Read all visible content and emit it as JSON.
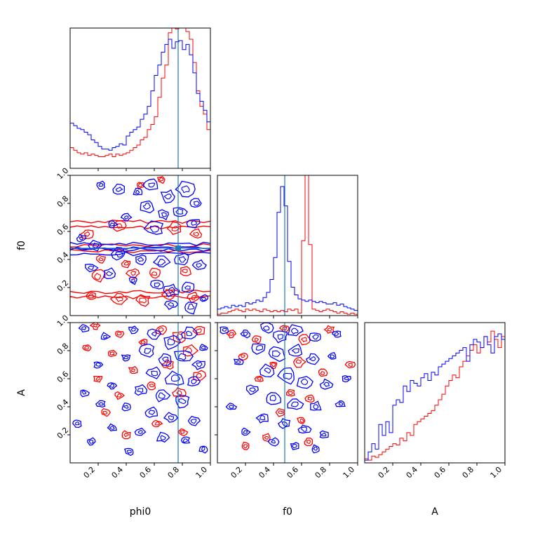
{
  "chart_data": {
    "type": "corner",
    "parameters": [
      "phi0",
      "f0",
      "A"
    ],
    "axis_ranges": {
      "phi0": [
        0,
        1
      ],
      "f0": [
        0,
        1
      ],
      "A": [
        0,
        1
      ]
    },
    "ticks": [
      0.2,
      0.4,
      0.6,
      0.8,
      1.0
    ],
    "tick_labels": [
      "0.2",
      "0.4",
      "0.6",
      "0.8",
      "1.0"
    ],
    "truth": {
      "phi0": 0.77,
      "f0": 0.48
    },
    "colors": {
      "series_a": "#0000ff",
      "series_b": "#ff0000",
      "truth": "#1f77b4",
      "axes": "#000000"
    },
    "grid": false,
    "legend": "none",
    "histograms": {
      "phi0": {
        "bins": 40,
        "blue": [
          0.35,
          0.33,
          0.31,
          0.3,
          0.28,
          0.26,
          0.22,
          0.2,
          0.17,
          0.15,
          0.15,
          0.14,
          0.16,
          0.17,
          0.19,
          0.18,
          0.25,
          0.28,
          0.3,
          0.32,
          0.38,
          0.42,
          0.48,
          0.6,
          0.72,
          0.8,
          0.9,
          0.96,
          1.0,
          0.93,
          0.98,
          0.99,
          0.92,
          0.96,
          0.88,
          0.74,
          0.58,
          0.52,
          0.45,
          0.36
        ],
        "red": [
          0.16,
          0.14,
          0.12,
          0.11,
          0.12,
          0.1,
          0.11,
          0.1,
          0.09,
          0.09,
          0.1,
          0.11,
          0.09,
          0.11,
          0.1,
          0.11,
          0.12,
          0.14,
          0.16,
          0.18,
          0.22,
          0.24,
          0.3,
          0.34,
          0.4,
          0.55,
          0.7,
          0.8,
          1.05,
          1.1,
          1.08,
          1.12,
          1.1,
          1.06,
          1.0,
          0.82,
          0.6,
          0.48,
          0.42,
          0.3
        ]
      },
      "f0": {
        "bins": 40,
        "blue": [
          0.05,
          0.06,
          0.07,
          0.06,
          0.08,
          0.07,
          0.08,
          0.07,
          0.1,
          0.09,
          0.1,
          0.12,
          0.11,
          0.14,
          0.18,
          0.28,
          0.45,
          0.8,
          1.0,
          0.85,
          0.42,
          0.22,
          0.16,
          0.13,
          0.12,
          0.11,
          0.12,
          0.11,
          0.1,
          0.11,
          0.1,
          0.09,
          0.09,
          0.1,
          0.08,
          0.09,
          0.07,
          0.06,
          0.05,
          0.04
        ],
        "red": [
          0.01,
          0.02,
          0.02,
          0.03,
          0.04,
          0.05,
          0.04,
          0.03,
          0.05,
          0.04,
          0.05,
          0.04,
          0.03,
          0.05,
          0.04,
          0.03,
          0.04,
          0.03,
          0.04,
          0.03,
          0.05,
          0.04,
          0.05,
          0.02,
          0.58,
          1.4,
          0.55,
          0.05,
          0.04,
          0.03,
          0.04,
          0.05,
          0.04,
          0.03,
          0.02,
          0.03,
          0.02,
          0.01,
          0.02,
          0.01
        ]
      },
      "A": {
        "bins": 40,
        "blue": [
          0.02,
          0.08,
          0.14,
          0.1,
          0.28,
          0.2,
          0.3,
          0.22,
          0.42,
          0.46,
          0.44,
          0.56,
          0.52,
          0.6,
          0.58,
          0.56,
          0.62,
          0.65,
          0.6,
          0.66,
          0.64,
          0.7,
          0.72,
          0.74,
          0.76,
          0.78,
          0.8,
          0.82,
          0.84,
          0.74,
          0.86,
          0.9,
          0.88,
          0.84,
          0.92,
          0.86,
          0.8,
          0.92,
          0.94,
          0.9
        ],
        "red": [
          0.03,
          0.02,
          0.05,
          0.04,
          0.06,
          0.08,
          0.1,
          0.12,
          0.14,
          0.13,
          0.18,
          0.16,
          0.22,
          0.2,
          0.28,
          0.3,
          0.32,
          0.34,
          0.36,
          0.38,
          0.42,
          0.46,
          0.5,
          0.56,
          0.6,
          0.64,
          0.62,
          0.7,
          0.74,
          0.78,
          0.82,
          0.86,
          0.8,
          0.84,
          0.92,
          0.88,
          0.96,
          0.9,
          0.84,
          0.92
        ]
      }
    },
    "contours": [
      {
        "x": "phi0",
        "y": "f0",
        "blue_rings": [
          [
            0.22,
            0.93,
            0.03
          ],
          [
            0.35,
            0.9,
            0.04
          ],
          [
            0.48,
            0.88,
            0.03
          ],
          [
            0.58,
            0.93,
            0.05
          ],
          [
            0.7,
            0.85,
            0.05
          ],
          [
            0.82,
            0.9,
            0.06
          ],
          [
            0.9,
            0.8,
            0.04
          ],
          [
            0.55,
            0.78,
            0.05
          ],
          [
            0.67,
            0.72,
            0.04
          ],
          [
            0.78,
            0.74,
            0.05
          ],
          [
            0.4,
            0.7,
            0.03
          ],
          [
            0.3,
            0.65,
            0.03
          ],
          [
            0.88,
            0.66,
            0.04
          ],
          [
            0.6,
            0.62,
            0.06
          ],
          [
            0.08,
            0.55,
            0.03
          ],
          [
            0.18,
            0.5,
            0.04
          ],
          [
            0.35,
            0.44,
            0.05
          ],
          [
            0.5,
            0.4,
            0.04
          ],
          [
            0.65,
            0.38,
            0.05
          ],
          [
            0.8,
            0.4,
            0.05
          ],
          [
            0.92,
            0.36,
            0.04
          ],
          [
            0.15,
            0.34,
            0.04
          ],
          [
            0.28,
            0.3,
            0.04
          ],
          [
            0.45,
            0.25,
            0.03
          ],
          [
            0.62,
            0.22,
            0.04
          ],
          [
            0.72,
            0.18,
            0.05
          ],
          [
            0.84,
            0.2,
            0.04
          ],
          [
            0.72,
            0.08,
            0.04
          ],
          [
            0.86,
            0.06,
            0.05
          ],
          [
            0.95,
            0.12,
            0.03
          ]
        ],
        "red_rings": [
          [
            0.65,
            0.97,
            0.03
          ],
          [
            0.5,
            0.93,
            0.03
          ],
          [
            0.35,
            0.64,
            0.04
          ],
          [
            0.12,
            0.58,
            0.04
          ],
          [
            0.75,
            0.62,
            0.05
          ],
          [
            0.9,
            0.58,
            0.04
          ],
          [
            0.22,
            0.4,
            0.03
          ],
          [
            0.4,
            0.37,
            0.03
          ],
          [
            0.6,
            0.3,
            0.04
          ],
          [
            0.82,
            0.32,
            0.04
          ],
          [
            0.2,
            0.28,
            0.05
          ],
          [
            0.45,
            0.3,
            0.04
          ],
          [
            0.15,
            0.14,
            0.04
          ],
          [
            0.35,
            0.12,
            0.05
          ],
          [
            0.52,
            0.11,
            0.05
          ],
          [
            0.7,
            0.15,
            0.04
          ],
          [
            0.88,
            0.13,
            0.04
          ]
        ],
        "red_bands": [
          0.63,
          0.46,
          0.13
        ],
        "blue_bands": [
          0.47,
          0.44
        ]
      },
      {
        "x": "phi0",
        "y": "A",
        "blue_rings": [
          [
            0.1,
            0.96,
            0.03
          ],
          [
            0.25,
            0.9,
            0.03
          ],
          [
            0.45,
            0.95,
            0.03
          ],
          [
            0.6,
            0.92,
            0.04
          ],
          [
            0.72,
            0.86,
            0.06
          ],
          [
            0.85,
            0.92,
            0.05
          ],
          [
            0.95,
            0.82,
            0.03
          ],
          [
            0.55,
            0.8,
            0.05
          ],
          [
            0.68,
            0.74,
            0.05
          ],
          [
            0.8,
            0.76,
            0.06
          ],
          [
            0.92,
            0.7,
            0.04
          ],
          [
            0.4,
            0.75,
            0.03
          ],
          [
            0.2,
            0.7,
            0.03
          ],
          [
            0.6,
            0.64,
            0.05
          ],
          [
            0.75,
            0.6,
            0.06
          ],
          [
            0.88,
            0.58,
            0.04
          ],
          [
            0.3,
            0.55,
            0.03
          ],
          [
            0.1,
            0.5,
            0.03
          ],
          [
            0.5,
            0.52,
            0.04
          ],
          [
            0.65,
            0.48,
            0.05
          ],
          [
            0.8,
            0.44,
            0.05
          ],
          [
            0.22,
            0.42,
            0.03
          ],
          [
            0.4,
            0.4,
            0.03
          ],
          [
            0.58,
            0.36,
            0.04
          ],
          [
            0.72,
            0.32,
            0.04
          ],
          [
            0.88,
            0.3,
            0.04
          ],
          [
            0.05,
            0.28,
            0.03
          ],
          [
            0.3,
            0.25,
            0.03
          ],
          [
            0.5,
            0.22,
            0.03
          ],
          [
            0.66,
            0.18,
            0.04
          ],
          [
            0.82,
            0.16,
            0.03
          ],
          [
            0.15,
            0.15,
            0.03
          ],
          [
            0.42,
            0.08,
            0.03
          ],
          [
            0.95,
            0.1,
            0.03
          ]
        ],
        "red_rings": [
          [
            0.18,
            0.98,
            0.03
          ],
          [
            0.35,
            0.92,
            0.03
          ],
          [
            0.52,
            0.86,
            0.03
          ],
          [
            0.65,
            0.95,
            0.04
          ],
          [
            0.78,
            0.9,
            0.05
          ],
          [
            0.92,
            0.94,
            0.04
          ],
          [
            0.12,
            0.82,
            0.03
          ],
          [
            0.3,
            0.78,
            0.03
          ],
          [
            0.85,
            0.8,
            0.05
          ],
          [
            0.7,
            0.7,
            0.04
          ],
          [
            0.45,
            0.66,
            0.03
          ],
          [
            0.2,
            0.6,
            0.03
          ],
          [
            0.92,
            0.62,
            0.04
          ],
          [
            0.58,
            0.55,
            0.03
          ],
          [
            0.35,
            0.48,
            0.03
          ],
          [
            0.78,
            0.5,
            0.04
          ],
          [
            0.25,
            0.36,
            0.03
          ],
          [
            0.62,
            0.28,
            0.03
          ],
          [
            0.4,
            0.2,
            0.03
          ],
          [
            0.8,
            0.22,
            0.03
          ]
        ],
        "red_bands": [],
        "blue_bands": []
      },
      {
        "x": "f0",
        "y": "A",
        "blue_rings": [
          [
            0.05,
            0.95,
            0.03
          ],
          [
            0.2,
            0.92,
            0.03
          ],
          [
            0.35,
            0.96,
            0.04
          ],
          [
            0.45,
            0.9,
            0.05
          ],
          [
            0.55,
            0.94,
            0.05
          ],
          [
            0.7,
            0.9,
            0.04
          ],
          [
            0.85,
            0.92,
            0.03
          ],
          [
            0.3,
            0.82,
            0.05
          ],
          [
            0.42,
            0.78,
            0.06
          ],
          [
            0.56,
            0.8,
            0.05
          ],
          [
            0.68,
            0.74,
            0.04
          ],
          [
            0.82,
            0.76,
            0.03
          ],
          [
            0.15,
            0.72,
            0.03
          ],
          [
            0.36,
            0.66,
            0.05
          ],
          [
            0.5,
            0.62,
            0.06
          ],
          [
            0.62,
            0.58,
            0.05
          ],
          [
            0.78,
            0.56,
            0.04
          ],
          [
            0.92,
            0.6,
            0.03
          ],
          [
            0.25,
            0.52,
            0.04
          ],
          [
            0.4,
            0.46,
            0.05
          ],
          [
            0.55,
            0.42,
            0.05
          ],
          [
            0.7,
            0.4,
            0.04
          ],
          [
            0.88,
            0.42,
            0.03
          ],
          [
            0.32,
            0.32,
            0.04
          ],
          [
            0.48,
            0.28,
            0.04
          ],
          [
            0.62,
            0.24,
            0.04
          ],
          [
            0.76,
            0.2,
            0.03
          ],
          [
            0.2,
            0.22,
            0.03
          ],
          [
            0.4,
            0.15,
            0.03
          ],
          [
            0.55,
            0.12,
            0.03
          ],
          [
            0.7,
            0.1,
            0.03
          ],
          [
            0.1,
            0.4,
            0.03
          ]
        ],
        "red_rings": [
          [
            0.1,
            0.92,
            0.03
          ],
          [
            0.28,
            0.88,
            0.03
          ],
          [
            0.48,
            0.96,
            0.03
          ],
          [
            0.62,
            0.88,
            0.04
          ],
          [
            0.8,
            0.95,
            0.03
          ],
          [
            0.18,
            0.76,
            0.03
          ],
          [
            0.4,
            0.7,
            0.03
          ],
          [
            0.58,
            0.72,
            0.04
          ],
          [
            0.75,
            0.64,
            0.03
          ],
          [
            0.3,
            0.6,
            0.03
          ],
          [
            0.52,
            0.5,
            0.03
          ],
          [
            0.66,
            0.46,
            0.03
          ],
          [
            0.45,
            0.36,
            0.03
          ],
          [
            0.6,
            0.3,
            0.03
          ],
          [
            0.35,
            0.18,
            0.03
          ],
          [
            0.65,
            0.15,
            0.03
          ],
          [
            0.2,
            0.12,
            0.03
          ],
          [
            0.95,
            0.7,
            0.03
          ]
        ],
        "red_bands": [],
        "blue_bands": []
      }
    ]
  }
}
